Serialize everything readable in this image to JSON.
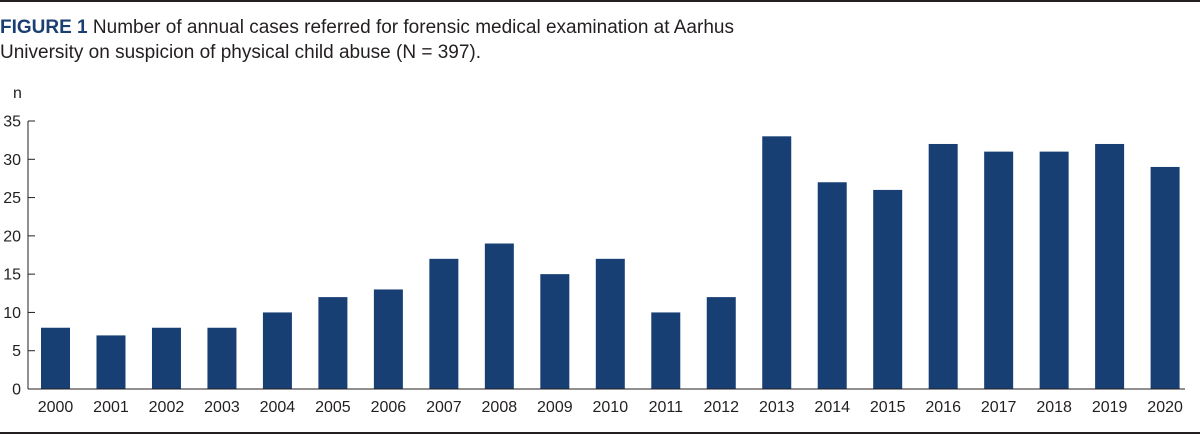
{
  "caption": {
    "figure_label": "FIGURE 1",
    "text": "Number of annual cases referred for forensic medical examination at Aarhus University on suspicion of physical child abuse (N = 397)."
  },
  "colors": {
    "bar": "#173f74",
    "axis": "#231f20",
    "figure_label": "#1b3f72"
  },
  "chart_data": {
    "type": "bar",
    "ylabel": "n",
    "xlabel": "",
    "ylim": [
      0,
      35
    ],
    "yticks": [
      0,
      5,
      10,
      15,
      20,
      25,
      30,
      35
    ],
    "grid": false,
    "categories": [
      "2000",
      "2001",
      "2002",
      "2003",
      "2004",
      "2005",
      "2006",
      "2007",
      "2008",
      "2009",
      "2010",
      "2011",
      "2012",
      "2013",
      "2014",
      "2015",
      "2016",
      "2017",
      "2018",
      "2019",
      "2020"
    ],
    "values": [
      8,
      7,
      8,
      8,
      10,
      12,
      13,
      17,
      19,
      15,
      17,
      10,
      12,
      33,
      27,
      26,
      32,
      31,
      31,
      32,
      29
    ]
  }
}
